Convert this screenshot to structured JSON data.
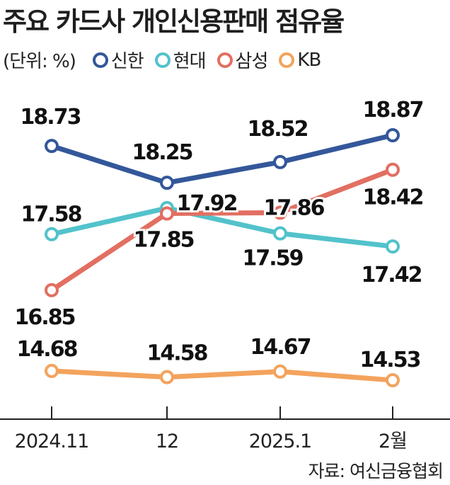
{
  "title": "주요 카드사 개인신용판매 점유율",
  "unit_label": "(단위: %)",
  "source": "자료: 여신금융협회",
  "chart_data": {
    "type": "line",
    "title": "주요 카드사 개인신용판매 점유율",
    "categories": [
      "2024.11",
      "12",
      "2025.1",
      "2월"
    ],
    "ylabel": "",
    "xlabel": "",
    "ylim": [
      14,
      19.2
    ],
    "grid": false,
    "legend_position": "top-left",
    "series": [
      {
        "name": "신한",
        "color": "#33579a",
        "values": [
          18.73,
          18.25,
          18.52,
          18.87
        ],
        "labels": [
          "18.73",
          "18.25",
          "18.52",
          "18.87"
        ]
      },
      {
        "name": "현대",
        "color": "#52c2cb",
        "values": [
          17.58,
          17.92,
          17.59,
          17.42
        ],
        "labels": [
          "17.58",
          "17.92",
          "17.59",
          "17.42"
        ]
      },
      {
        "name": "삼성",
        "color": "#e26f62",
        "values": [
          16.85,
          17.85,
          17.86,
          18.42
        ],
        "labels": [
          "16.85",
          "17.85",
          "17.86",
          "18.42"
        ]
      },
      {
        "name": "KB",
        "color": "#f3a35d",
        "values": [
          14.68,
          14.58,
          14.67,
          14.53
        ],
        "labels": [
          "14.68",
          "14.58",
          "14.67",
          "14.53"
        ]
      }
    ]
  }
}
